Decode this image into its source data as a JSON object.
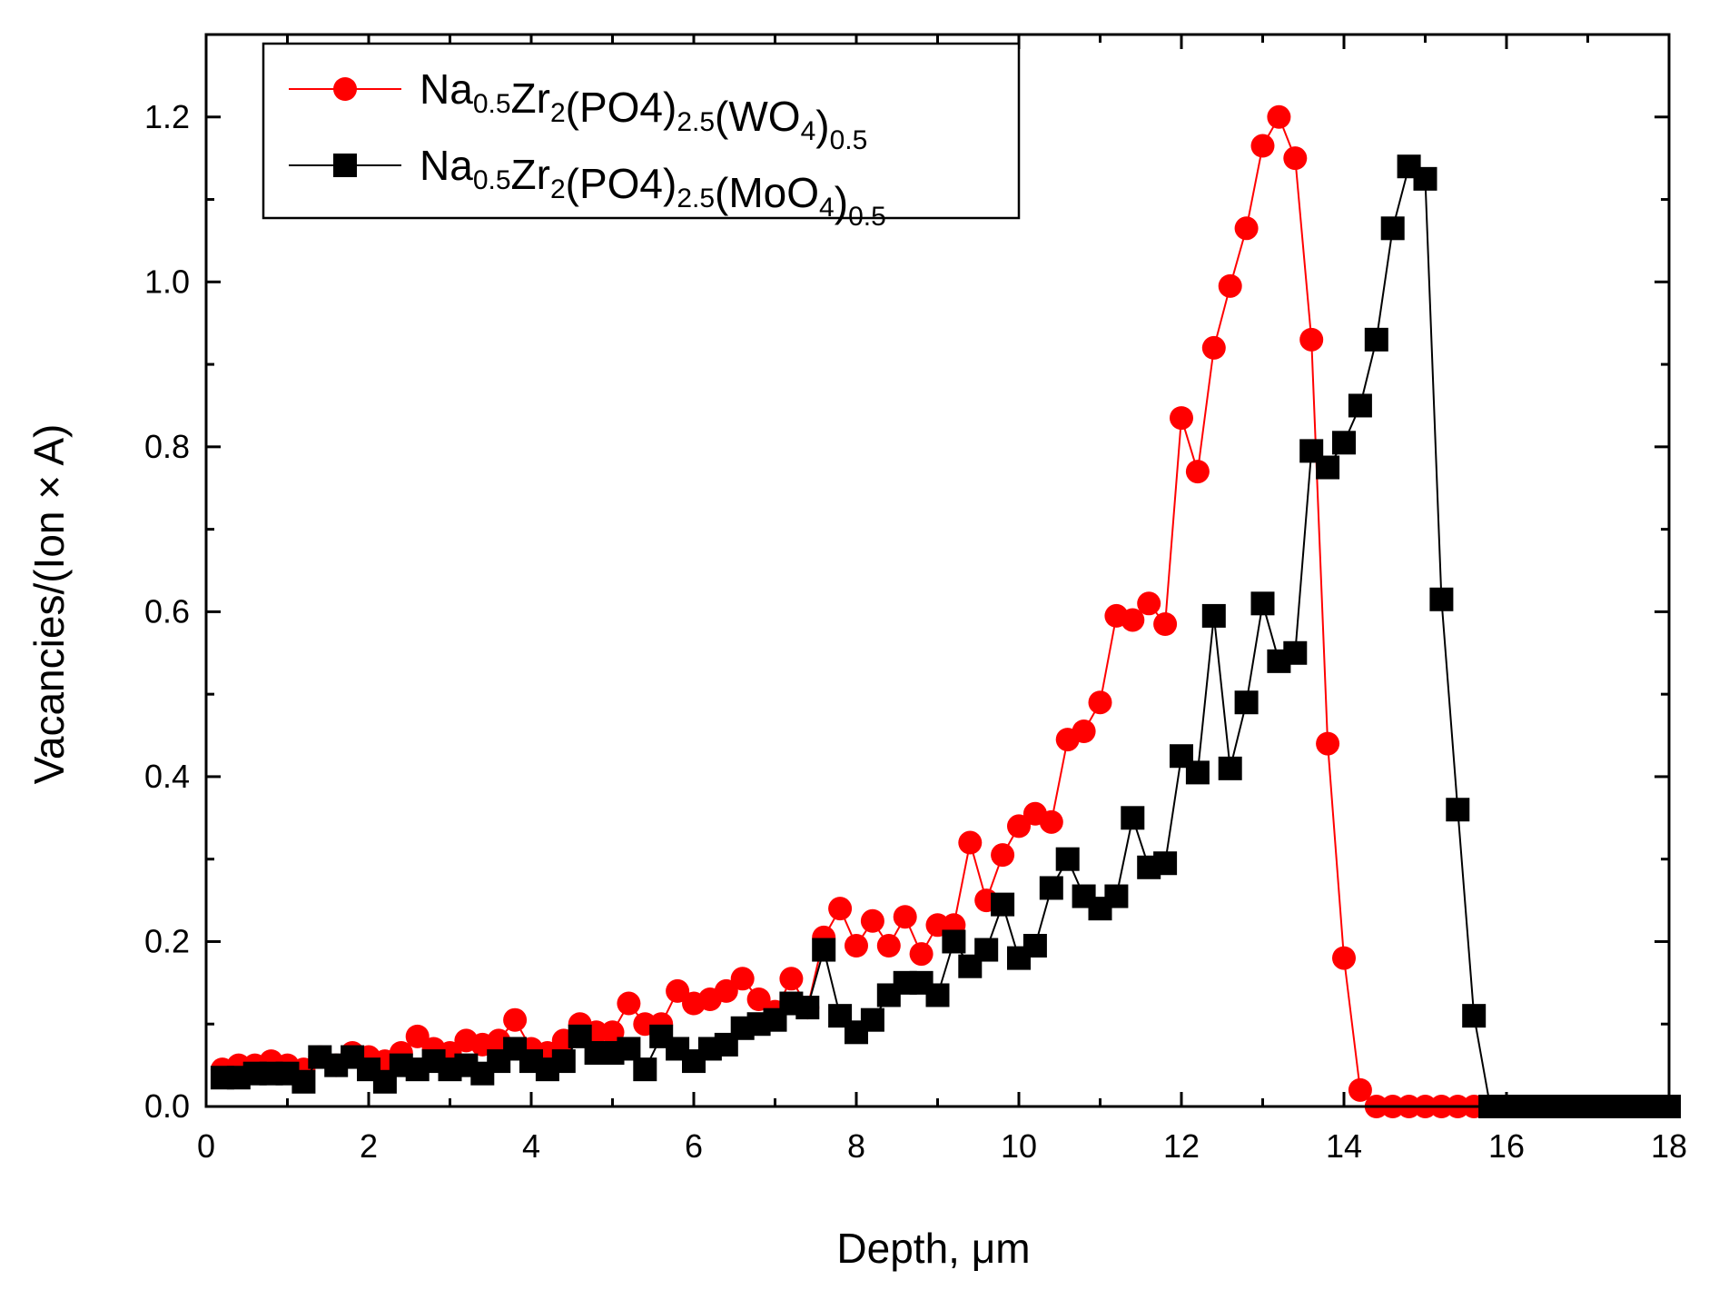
{
  "chart_data": {
    "type": "scatter",
    "xlabel": "Depth, μm",
    "ylabel": "Vacancies/(Ion × A)",
    "xlim": [
      0,
      18
    ],
    "ylim": [
      0,
      1.3
    ],
    "x_ticks": [
      "0",
      "2",
      "4",
      "6",
      "8",
      "10",
      "12",
      "14",
      "16",
      "18"
    ],
    "y_ticks": [
      "0.0",
      "0.2",
      "0.4",
      "0.6",
      "0.8",
      "1.0",
      "1.2"
    ],
    "legend_position": "top-left",
    "series": [
      {
        "name": "Na0.5Zr2(PO4)2.5(WO4)0.5",
        "label_parts": [
          {
            "t": "Na",
            "sub": false
          },
          {
            "t": "0.5",
            "sub": true
          },
          {
            "t": "Zr",
            "sub": false
          },
          {
            "t": "2",
            "sub": true
          },
          {
            "t": "(PO4)",
            "sub": false
          },
          {
            "t": "2.5",
            "sub": true
          },
          {
            "t": "(WO",
            "sub": false
          },
          {
            "t": "4",
            "sub": true
          },
          {
            "t": ")",
            "sub": false
          },
          {
            "t": "0.5",
            "sub": true
          }
        ],
        "color": "#ff0000",
        "marker": "circle",
        "x": [
          0.2,
          0.4,
          0.6,
          0.8,
          1.0,
          1.2,
          1.4,
          1.6,
          1.8,
          2.0,
          2.2,
          2.4,
          2.6,
          2.8,
          3.0,
          3.2,
          3.4,
          3.6,
          3.8,
          4.0,
          4.2,
          4.4,
          4.6,
          4.8,
          5.0,
          5.2,
          5.4,
          5.6,
          5.8,
          6.0,
          6.2,
          6.4,
          6.6,
          6.8,
          7.0,
          7.2,
          7.4,
          7.6,
          7.8,
          8.0,
          8.2,
          8.4,
          8.6,
          8.8,
          9.0,
          9.2,
          9.4,
          9.6,
          9.8,
          10.0,
          10.2,
          10.4,
          10.6,
          10.8,
          11.0,
          11.2,
          11.4,
          11.6,
          11.8,
          12.0,
          12.2,
          12.4,
          12.6,
          12.8,
          13.0,
          13.2,
          13.4,
          13.6,
          13.8,
          14.0,
          14.2,
          14.4,
          14.6,
          14.8,
          15.0,
          15.2,
          15.4,
          15.6,
          15.8,
          16.0,
          16.2,
          16.4,
          16.6,
          16.8,
          17.0,
          17.2,
          17.4,
          17.6,
          17.8,
          18.0
        ],
        "y": [
          0.045,
          0.05,
          0.05,
          0.055,
          0.05,
          0.045,
          0.06,
          0.05,
          0.065,
          0.06,
          0.055,
          0.065,
          0.085,
          0.07,
          0.065,
          0.08,
          0.075,
          0.08,
          0.105,
          0.07,
          0.065,
          0.08,
          0.1,
          0.09,
          0.09,
          0.125,
          0.1,
          0.1,
          0.14,
          0.125,
          0.13,
          0.14,
          0.155,
          0.13,
          0.115,
          0.155,
          0.12,
          0.205,
          0.24,
          0.195,
          0.225,
          0.195,
          0.23,
          0.185,
          0.22,
          0.22,
          0.32,
          0.25,
          0.305,
          0.34,
          0.355,
          0.345,
          0.445,
          0.455,
          0.49,
          0.595,
          0.59,
          0.61,
          0.585,
          0.835,
          0.77,
          0.92,
          0.995,
          1.065,
          1.165,
          1.2,
          1.15,
          0.93,
          0.44,
          0.18,
          0.02,
          0.0,
          0.0,
          0.0,
          0.0,
          0.0,
          0.0,
          0.0,
          0.0,
          0.0,
          0.0,
          0.0,
          0.0,
          0.0,
          0.0,
          0.0,
          0.0,
          0.0,
          0.0,
          0.0
        ]
      },
      {
        "name": "Na0.5Zr2(PO4)2.5(MoO4)0.5",
        "label_parts": [
          {
            "t": "Na",
            "sub": false
          },
          {
            "t": "0.5",
            "sub": true
          },
          {
            "t": "Zr",
            "sub": false
          },
          {
            "t": "2",
            "sub": true
          },
          {
            "t": "(PO4)",
            "sub": false
          },
          {
            "t": "2.5",
            "sub": true
          },
          {
            "t": "(MoO",
            "sub": false
          },
          {
            "t": "4",
            "sub": true
          },
          {
            "t": ")",
            "sub": false
          },
          {
            "t": "0.5",
            "sub": true
          }
        ],
        "color": "#000000",
        "marker": "square",
        "x": [
          0.2,
          0.4,
          0.6,
          0.8,
          1.0,
          1.2,
          1.4,
          1.6,
          1.8,
          2.0,
          2.2,
          2.4,
          2.6,
          2.8,
          3.0,
          3.2,
          3.4,
          3.6,
          3.8,
          4.0,
          4.2,
          4.4,
          4.6,
          4.8,
          5.0,
          5.2,
          5.4,
          5.6,
          5.8,
          6.0,
          6.2,
          6.4,
          6.6,
          6.8,
          7.0,
          7.2,
          7.4,
          7.6,
          7.8,
          8.0,
          8.2,
          8.4,
          8.6,
          8.8,
          9.0,
          9.2,
          9.4,
          9.6,
          9.8,
          10.0,
          10.2,
          10.4,
          10.6,
          10.8,
          11.0,
          11.2,
          11.4,
          11.6,
          11.8,
          12.0,
          12.2,
          12.4,
          12.6,
          12.8,
          13.0,
          13.2,
          13.4,
          13.6,
          13.8,
          14.0,
          14.2,
          14.4,
          14.6,
          14.8,
          15.0,
          15.2,
          15.4,
          15.6,
          15.8,
          16.0,
          16.2,
          16.4,
          16.6,
          16.8,
          17.0,
          17.2,
          17.4,
          17.6,
          17.8,
          18.0
        ],
        "y": [
          0.035,
          0.035,
          0.04,
          0.04,
          0.04,
          0.03,
          0.06,
          0.05,
          0.06,
          0.045,
          0.03,
          0.05,
          0.045,
          0.055,
          0.045,
          0.05,
          0.04,
          0.055,
          0.07,
          0.055,
          0.045,
          0.055,
          0.085,
          0.065,
          0.065,
          0.07,
          0.045,
          0.085,
          0.07,
          0.055,
          0.07,
          0.075,
          0.095,
          0.1,
          0.105,
          0.125,
          0.12,
          0.19,
          0.11,
          0.09,
          0.105,
          0.135,
          0.15,
          0.15,
          0.135,
          0.2,
          0.17,
          0.19,
          0.245,
          0.18,
          0.195,
          0.265,
          0.3,
          0.255,
          0.24,
          0.255,
          0.35,
          0.29,
          0.295,
          0.425,
          0.405,
          0.595,
          0.41,
          0.49,
          0.61,
          0.54,
          0.55,
          0.795,
          0.775,
          0.805,
          0.85,
          0.93,
          1.065,
          1.14,
          1.125,
          0.615,
          0.36,
          0.11,
          0.0,
          0.0,
          0.0,
          0.0,
          0.0,
          0.0,
          0.0,
          0.0,
          0.0,
          0.0,
          0.0,
          0.0
        ]
      }
    ]
  }
}
